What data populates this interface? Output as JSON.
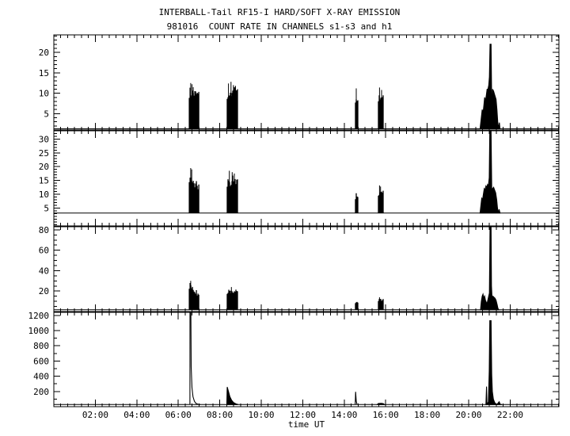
{
  "window": {
    "bg_color": "#ffffff",
    "fg_color": "#000000"
  },
  "chart_data": {
    "type": "line",
    "title": "INTERBALL-Tail RF15-I HARD/SOFT X-RAY EMISSION",
    "subtitle": "981016  COUNT RATE IN CHANNELS s1-s3 and h1",
    "xlabel": "time UT",
    "xlim": [
      0,
      24.35
    ],
    "x_minor_step_minutes": 20,
    "x_major_step_hours": 2,
    "x_ticks": [
      {
        "hour": 2,
        "label": "02:00"
      },
      {
        "hour": 4,
        "label": "04:00"
      },
      {
        "hour": 6,
        "label": "06:00"
      },
      {
        "hour": 8,
        "label": "08:00"
      },
      {
        "hour": 10,
        "label": "10:00"
      },
      {
        "hour": 12,
        "label": "12:00"
      },
      {
        "hour": 14,
        "label": "14:00"
      },
      {
        "hour": 16,
        "label": "16:00"
      },
      {
        "hour": 18,
        "label": "18:00"
      },
      {
        "hour": 20,
        "label": "20:00"
      },
      {
        "hour": 22,
        "label": "22:00"
      }
    ],
    "panels": [
      {
        "channel": "s1",
        "ylim": [
          1,
          24.3
        ],
        "yticks": [
          5,
          10,
          15,
          20
        ],
        "y_minor": 1,
        "baseline": 1.3,
        "events": [
          {
            "kind": "burst",
            "t0": 6.53,
            "t1": 7.0,
            "base": 1.3,
            "top0": 10.8,
            "top1": 10.0,
            "hairs": [
              [
                6.6,
                12.5
              ],
              [
                6.66,
                12.2
              ],
              [
                6.72,
                11.5
              ]
            ]
          },
          {
            "kind": "burst",
            "t0": 8.36,
            "t1": 8.89,
            "base": 1.3,
            "top0": 10.5,
            "top1": 10.8,
            "hairs": [
              [
                8.42,
                12.4
              ],
              [
                8.54,
                12.8
              ],
              [
                8.66,
                12.0
              ],
              [
                8.76,
                11.8
              ]
            ]
          },
          {
            "kind": "burst",
            "t0": 14.54,
            "t1": 14.66,
            "base": 1.3,
            "top0": 9.4,
            "top1": 9.0,
            "hairs": [
              [
                14.58,
                11.2
              ]
            ]
          },
          {
            "kind": "burst",
            "t0": 15.65,
            "t1": 15.88,
            "base": 1.3,
            "top0": 9.8,
            "top1": 9.2,
            "hairs": [
              [
                15.7,
                11.4
              ],
              [
                15.8,
                10.8
              ]
            ]
          },
          {
            "kind": "profile",
            "fill": true,
            "points": [
              [
                20.55,
                1.3
              ],
              [
                20.6,
                3.5
              ],
              [
                20.65,
                6
              ],
              [
                20.69,
                5
              ],
              [
                20.73,
                7
              ],
              [
                20.77,
                9
              ],
              [
                20.81,
                8
              ],
              [
                20.85,
                9.5
              ],
              [
                20.89,
                11
              ],
              [
                20.93,
                11
              ],
              [
                20.97,
                12
              ],
              [
                21.0,
                14
              ],
              [
                21.03,
                22
              ],
              [
                21.08,
                22
              ],
              [
                21.1,
                13
              ],
              [
                21.12,
                2
              ],
              [
                21.15,
                11
              ],
              [
                21.2,
                10.5
              ],
              [
                21.26,
                9.5
              ],
              [
                21.32,
                8.5
              ],
              [
                21.36,
                6
              ],
              [
                21.4,
                3
              ],
              [
                21.44,
                1.3
              ],
              [
                21.48,
                2.8
              ],
              [
                21.51,
                1.3
              ]
            ]
          }
        ]
      },
      {
        "channel": "s2",
        "ylim": [
          -1.5,
          33
        ],
        "yticks": [
          5,
          10,
          15,
          20,
          25,
          30
        ],
        "y_minor": 1,
        "baseline": 3.2,
        "events": [
          {
            "kind": "burst",
            "t0": 6.53,
            "t1": 7.0,
            "base": 3.2,
            "top0": 17.5,
            "top1": 13.5,
            "hairs": [
              [
                6.6,
                19.5
              ],
              [
                6.65,
                19.0
              ]
            ]
          },
          {
            "kind": "burst",
            "t0": 8.36,
            "t1": 8.89,
            "base": 3.2,
            "top0": 15.5,
            "top1": 16.0,
            "hairs": [
              [
                8.46,
                18.5
              ],
              [
                8.6,
                18.0
              ],
              [
                8.7,
                17.5
              ]
            ]
          },
          {
            "kind": "burst",
            "t0": 14.54,
            "t1": 14.66,
            "base": 3.2,
            "top0": 10.0,
            "top1": 9.5,
            "hairs": []
          },
          {
            "kind": "burst",
            "t0": 15.65,
            "t1": 15.88,
            "base": 3.2,
            "top0": 11.5,
            "top1": 11.0,
            "hairs": [
              [
                15.7,
                13.2
              ],
              [
                15.75,
                12.8
              ]
            ]
          },
          {
            "kind": "profile",
            "fill": true,
            "points": [
              [
                20.55,
                3.2
              ],
              [
                20.59,
                6
              ],
              [
                20.63,
                8.5
              ],
              [
                20.67,
                8
              ],
              [
                20.71,
                10
              ],
              [
                20.75,
                12
              ],
              [
                20.79,
                11.5
              ],
              [
                20.83,
                13
              ],
              [
                20.87,
                12.5
              ],
              [
                20.91,
                13.5
              ],
              [
                20.95,
                13
              ],
              [
                20.99,
                16
              ],
              [
                21.02,
                33
              ],
              [
                21.08,
                33
              ],
              [
                21.1,
                20
              ],
              [
                21.12,
                5
              ],
              [
                21.15,
                12
              ],
              [
                21.2,
                12.5
              ],
              [
                21.25,
                11.5
              ],
              [
                21.3,
                10.5
              ],
              [
                21.35,
                8
              ],
              [
                21.39,
                5
              ],
              [
                21.43,
                3.2
              ],
              [
                21.47,
                4.5
              ],
              [
                21.51,
                3.2
              ]
            ]
          }
        ]
      },
      {
        "channel": "s3",
        "ylim": [
          0,
          83
        ],
        "yticks": [
          20,
          40,
          60,
          80
        ],
        "y_minor": 5,
        "baseline": 1.8,
        "events": [
          {
            "kind": "burst",
            "t0": 6.53,
            "t1": 7.0,
            "base": 1.8,
            "top0": 27,
            "top1": 17,
            "hairs": [
              [
                6.6,
                30
              ]
            ]
          },
          {
            "kind": "burst",
            "t0": 8.36,
            "t1": 8.89,
            "base": 1.8,
            "top0": 21,
            "top1": 22,
            "hairs": [
              [
                8.56,
                24
              ]
            ]
          },
          {
            "kind": "burst",
            "t0": 14.54,
            "t1": 14.66,
            "base": 1.8,
            "top0": 10,
            "top1": 9,
            "hairs": []
          },
          {
            "kind": "burst",
            "t0": 15.65,
            "t1": 15.88,
            "base": 1.8,
            "top0": 12.5,
            "top1": 12,
            "hairs": [
              [
                15.7,
                14
              ]
            ]
          },
          {
            "kind": "profile",
            "fill": true,
            "points": [
              [
                20.57,
                1.8
              ],
              [
                20.61,
                10
              ],
              [
                20.65,
                15
              ],
              [
                20.69,
                17
              ],
              [
                20.73,
                13
              ],
              [
                20.77,
                15
              ],
              [
                20.81,
                11
              ],
              [
                20.85,
                9
              ],
              [
                20.89,
                8
              ],
              [
                21.0,
                18
              ],
              [
                21.03,
                83
              ],
              [
                21.08,
                83
              ],
              [
                21.1,
                25
              ],
              [
                21.13,
                12
              ],
              [
                21.17,
                15
              ],
              [
                21.22,
                14
              ],
              [
                21.27,
                13
              ],
              [
                21.32,
                11
              ],
              [
                21.37,
                7
              ],
              [
                21.41,
                3
              ],
              [
                21.45,
                1.8
              ]
            ]
          }
        ]
      },
      {
        "channel": "h1",
        "ylim": [
          0,
          1240
        ],
        "yticks": [
          200,
          400,
          600,
          800,
          1000,
          1200
        ],
        "y_minor": 100,
        "baseline": 28,
        "events": [
          {
            "kind": "profile",
            "fill": false,
            "points": [
              [
                6.56,
                28
              ],
              [
                6.565,
                1240
              ],
              [
                6.605,
                1240
              ],
              [
                6.62,
                520
              ],
              [
                6.66,
                250
              ],
              [
                6.71,
                130
              ],
              [
                6.78,
                70
              ],
              [
                6.86,
                42
              ],
              [
                6.98,
                30
              ],
              [
                7.06,
                28
              ]
            ]
          },
          {
            "kind": "profile",
            "fill": true,
            "points": [
              [
                8.34,
                28
              ],
              [
                8.36,
                258
              ],
              [
                8.42,
                200
              ],
              [
                8.49,
                130
              ],
              [
                8.57,
                85
              ],
              [
                8.66,
                55
              ],
              [
                8.77,
                38
              ],
              [
                8.88,
                28
              ]
            ]
          },
          {
            "kind": "profile",
            "fill": false,
            "points": [
              [
                14.53,
                28
              ],
              [
                14.55,
                195
              ],
              [
                14.58,
                70
              ],
              [
                14.62,
                28
              ]
            ]
          },
          {
            "kind": "profile",
            "fill": true,
            "points": [
              [
                15.6,
                28
              ],
              [
                15.64,
                42
              ],
              [
                15.78,
                44
              ],
              [
                15.88,
                40
              ],
              [
                15.94,
                28
              ]
            ]
          },
          {
            "kind": "profile",
            "fill": true,
            "points": [
              [
                20.83,
                28
              ],
              [
                20.86,
                265
              ],
              [
                20.88,
                35
              ],
              [
                20.95,
                60
              ],
              [
                20.99,
                470
              ],
              [
                21.02,
                1130
              ],
              [
                21.08,
                1130
              ],
              [
                21.11,
                420
              ],
              [
                21.14,
                200
              ],
              [
                21.19,
                100
              ],
              [
                21.25,
                55
              ],
              [
                21.31,
                38
              ],
              [
                21.37,
                30
              ],
              [
                21.47,
                65
              ],
              [
                21.52,
                30
              ],
              [
                21.6,
                28
              ]
            ]
          }
        ]
      }
    ]
  }
}
